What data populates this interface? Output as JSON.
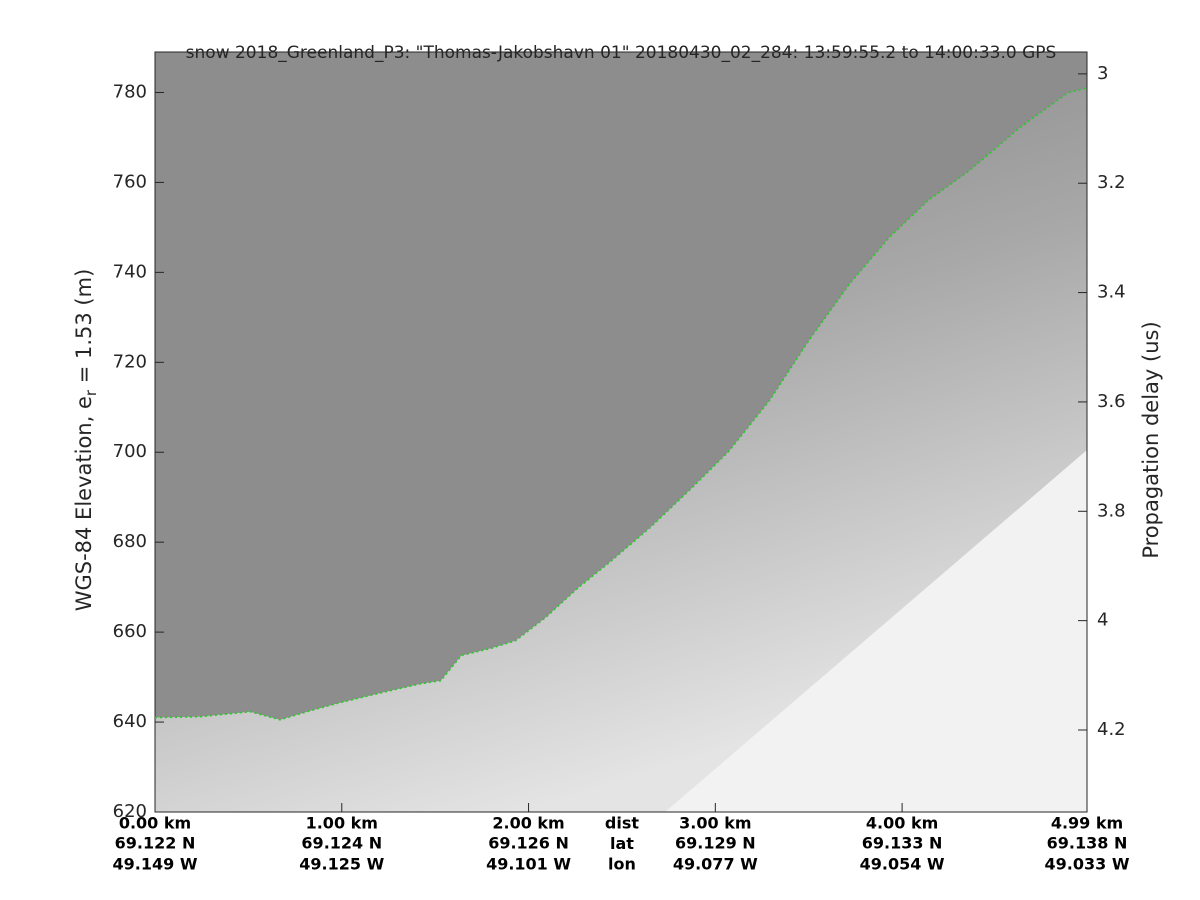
{
  "chart_data": {
    "type": "line",
    "title": "snow 2018_Greenland_P3: \"Thomas-Jakobshavn 01\"  20180430_02_284: 13:59:55.2 to 14:00:33.0 GPS",
    "ylabel": "WGS-84 Elevation, e",
    "ylabel_sub": "r",
    "ylabel_end": " = 1.53 (m)",
    "y2label": "Propagation delay (us)",
    "xlim": [
      0,
      4.99
    ],
    "xticks": [
      {
        "value": 0,
        "label": "0.00 km"
      },
      {
        "value": 1,
        "label": "1.00 km"
      },
      {
        "value": 2,
        "label": "2.00 km"
      },
      {
        "value": 3,
        "label": "3.00 km"
      },
      {
        "value": 4,
        "label": "4.00 km"
      },
      {
        "value": 4.99,
        "label": "4.99 km"
      }
    ],
    "lat_labels": [
      "69.122 N",
      "69.124 N",
      "69.126 N",
      "69.129 N",
      "69.133 N",
      "69.138 N"
    ],
    "lon_labels": [
      "49.149 W",
      "49.125 W",
      "49.101 W",
      "49.077 W",
      "49.054 W",
      "49.033 W"
    ],
    "row_labels": [
      "dist",
      "lat",
      "lon"
    ],
    "ylim": [
      620,
      789
    ],
    "yticks": [
      620,
      640,
      660,
      680,
      700,
      720,
      740,
      760,
      780
    ],
    "y2lim": [
      4.35,
      2.96
    ],
    "y2ticks": [
      3,
      3.2,
      3.4,
      3.6,
      3.8,
      4,
      4.2
    ],
    "x": [
      0,
      0.24,
      0.51,
      0.67,
      0.83,
      0.99,
      1.21,
      1.42,
      1.53,
      1.64,
      1.8,
      1.93,
      2.09,
      2.27,
      2.43,
      2.65,
      2.86,
      3.07,
      3.29,
      3.5,
      3.72,
      3.93,
      4.14,
      4.36,
      4.63,
      4.89,
      4.99
    ],
    "series": [
      {
        "color": "#22cc22",
        "values": [
          641,
          641.2,
          642.3,
          640.5,
          642.5,
          644.3,
          646.5,
          648.5,
          649.2,
          654.8,
          656.4,
          658.1,
          663.2,
          670,
          675.4,
          683.2,
          691.5,
          700.1,
          711.5,
          724.8,
          737.5,
          747.7,
          756,
          762.6,
          772.2,
          780,
          781
        ]
      }
    ]
  }
}
